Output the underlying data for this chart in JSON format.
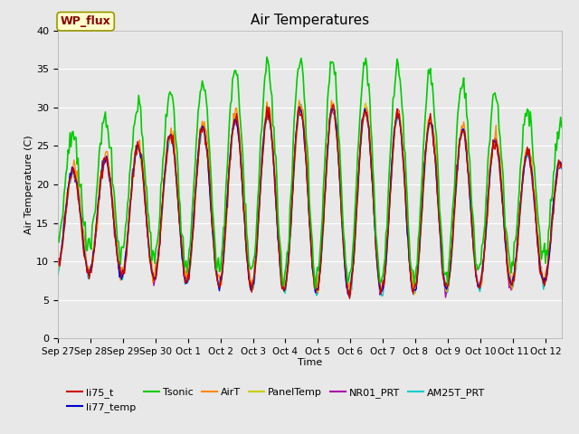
{
  "title": "Air Temperatures",
  "xlabel": "Time",
  "ylabel": "Air Temperature (C)",
  "ylim": [
    0,
    40
  ],
  "background_color": "#e8e8e8",
  "plot_bg_color": "#e8e8e8",
  "series_order": [
    "AM25T_PRT",
    "NR01_PRT",
    "PanelTemp",
    "AirT",
    "li77_temp",
    "li75_t",
    "Tsonic"
  ],
  "series": {
    "li75_t": {
      "color": "#cc0000",
      "lw": 1.0
    },
    "li77_temp": {
      "color": "#0000cc",
      "lw": 1.0
    },
    "Tsonic": {
      "color": "#00cc00",
      "lw": 1.2
    },
    "AirT": {
      "color": "#ff8800",
      "lw": 1.0
    },
    "PanelTemp": {
      "color": "#cccc00",
      "lw": 1.0
    },
    "NR01_PRT": {
      "color": "#aa00aa",
      "lw": 1.0
    },
    "AM25T_PRT": {
      "color": "#00cccc",
      "lw": 1.0
    }
  },
  "legend_entries": [
    "li75_t",
    "li77_temp",
    "Tsonic",
    "AirT",
    "PanelTemp",
    "NR01_PRT",
    "AM25T_PRT"
  ],
  "legend_box_label": "WP_flux",
  "legend_box_facecolor": "#ffffcc",
  "legend_box_edgecolor": "#999900",
  "legend_box_text_color": "#8b0000",
  "tick_labels": [
    "Sep 27",
    "Sep 28",
    "Sep 29",
    "Sep 30",
    "Oct 1",
    "Oct 2",
    "Oct 3",
    "Oct 4",
    "Oct 5",
    "Oct 6",
    "Oct 7",
    "Oct 8",
    "Oct 9",
    "Oct 10",
    "Oct 11",
    "Oct 12"
  ],
  "yticks": [
    0,
    5,
    10,
    15,
    20,
    25,
    30,
    35,
    40
  ],
  "seed": 42,
  "num_points": 500
}
